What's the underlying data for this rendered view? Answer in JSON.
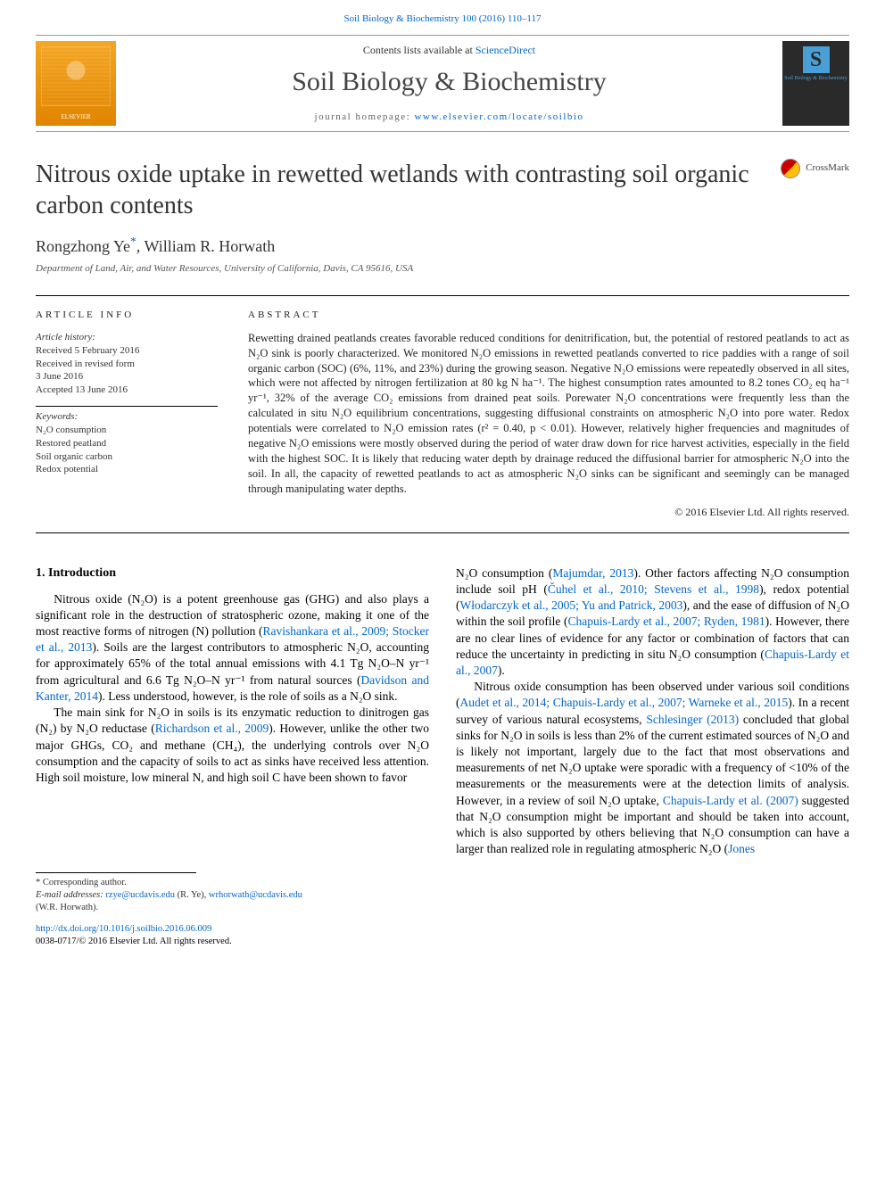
{
  "topCitation": "Soil Biology & Biochemistry 100 (2016) 110–117",
  "banner": {
    "contentsPrefix": "Contents lists available at ",
    "contentsLink": "ScienceDirect",
    "journalName": "Soil Biology & Biochemistry",
    "homepagePrefix": "journal homepage: ",
    "homepageLink": "www.elsevier.com/locate/soilbio",
    "elsevierLabel": "ELSEVIER",
    "coverTitle": "Soil Biology & Biochemistry"
  },
  "crossmarkLabel": "CrossMark",
  "title": "Nitrous oxide uptake in rewetted wetlands with contrasting soil organic carbon contents",
  "authors": {
    "a1_name": "Rongzhong Ye",
    "a1_mark": "*",
    "sep": ", ",
    "a2_name": "William R. Horwath"
  },
  "affiliation": "Department of Land, Air, and Water Resources, University of California, Davis, CA 95616, USA",
  "articleInfo": {
    "heading": "article info",
    "historyHead": "Article history:",
    "received": "Received 5 February 2016",
    "revised1": "Received in revised form",
    "revised2": "3 June 2016",
    "accepted": "Accepted 13 June 2016",
    "keywordsHead": "Keywords:",
    "kw1": "N₂O consumption",
    "kw2": "Restored peatland",
    "kw3": "Soil organic carbon",
    "kw4": "Redox potential"
  },
  "abstract": {
    "heading": "abstract",
    "body": "Rewetting drained peatlands creates favorable reduced conditions for denitrification, but, the potential of restored peatlands to act as N₂O sink is poorly characterized. We monitored N₂O emissions in rewetted peatlands converted to rice paddies with a range of soil organic carbon (SOC) (6%, 11%, and 23%) during the growing season. Negative N₂O emissions were repeatedly observed in all sites, which were not affected by nitrogen fertilization at 80 kg N ha⁻¹. The highest consumption rates amounted to 8.2 tones CO₂ eq ha⁻¹ yr⁻¹, 32% of the average CO₂ emissions from drained peat soils. Porewater N₂O concentrations were frequently less than the calculated in situ N₂O equilibrium concentrations, suggesting diffusional constraints on atmospheric N₂O into pore water. Redox potentials were correlated to N₂O emission rates (r² = 0.40, p < 0.01). However, relatively higher frequencies and magnitudes of negative N₂O emissions were mostly observed during the period of water draw down for rice harvest activities, especially in the field with the highest SOC. It is likely that reducing water depth by drainage reduced the diffusional barrier for atmospheric N₂O into the soil. In all, the capacity of rewetted peatlands to act as atmospheric N₂O sinks can be significant and seemingly can be managed through manipulating water depths.",
    "copyright": "© 2016 Elsevier Ltd. All rights reserved."
  },
  "intro": {
    "heading": "1. Introduction",
    "leftCol": {
      "p1_a": "Nitrous oxide (N₂O) is a potent greenhouse gas (GHG) and also plays a significant role in the destruction of stratospheric ozone, making it one of the most reactive forms of nitrogen (N) pollution (",
      "p1_ref1": "Ravishankara et al., 2009; Stocker et al., 2013",
      "p1_b": "). Soils are the largest contributors to atmospheric N₂O, accounting for approximately 65% of the total annual emissions with 4.1 Tg N₂O–N yr⁻¹ from agricultural and 6.6 Tg N₂O–N yr⁻¹ from natural sources (",
      "p1_ref2": "Davidson and Kanter, 2014",
      "p1_c": "). Less understood, however, is the role of soils as a N₂O sink.",
      "p2_a": "The main sink for N₂O in soils is its enzymatic reduction to dinitrogen gas (N₂) by N₂O reductase (",
      "p2_ref1": "Richardson et al., 2009",
      "p2_b": "). However, unlike the other two major GHGs, CO₂ and methane (CH₄), the underlying controls over N₂O consumption and the capacity of soils to act as sinks have received less attention. High soil moisture, low mineral N, and high soil C have been shown to favor"
    },
    "rightCol": {
      "p1_a": "N₂O consumption (",
      "p1_ref1": "Majumdar, 2013",
      "p1_b": "). Other factors affecting N₂O consumption include soil pH (",
      "p1_ref2": "Čuhel et al., 2010; Stevens et al., 1998",
      "p1_c": "), redox potential (",
      "p1_ref3": "Włodarczyk et al., 2005; Yu and Patrick, 2003",
      "p1_d": "), and the ease of diffusion of N₂O within the soil profile (",
      "p1_ref4": "Chapuis-Lardy et al., 2007; Ryden, 1981",
      "p1_e": "). However, there are no clear lines of evidence for any factor or combination of factors that can reduce the uncertainty in predicting in situ N₂O consumption (",
      "p1_ref5": "Chapuis-Lardy et al., 2007",
      "p1_f": ").",
      "p2_a": "Nitrous oxide consumption has been observed under various soil conditions (",
      "p2_ref1": "Audet et al., 2014; Chapuis-Lardy et al., 2007; Warneke et al., 2015",
      "p2_b": "). In a recent survey of various natural ecosystems, ",
      "p2_ref2": "Schlesinger (2013)",
      "p2_c": " concluded that global sinks for N₂O in soils is less than 2% of the current estimated sources of N₂O and is likely not important, largely due to the fact that most observations and measurements of net N₂O uptake were sporadic with a frequency of <10% of the measurements or the measurements were at the detection limits of analysis. However, in a review of soil N₂O uptake, ",
      "p2_ref3": "Chapuis-Lardy et al. (2007)",
      "p2_d": " suggested that N₂O consumption might be important and should be taken into account, which is also supported by others believing that N₂O consumption can have a larger than realized role in regulating atmospheric N₂O (",
      "p2_ref4": "Jones"
    }
  },
  "footnotes": {
    "corrLabel": "* Corresponding author.",
    "emailLabel": "E-mail addresses:",
    "email1": "rzye@ucdavis.edu",
    "email1_who": " (R. Ye), ",
    "email2": "wrhorwath@ucdavis.edu",
    "email2_who": "(W.R. Horwath)."
  },
  "doi": {
    "link": "http://dx.doi.org/10.1016/j.soilbio.2016.06.009",
    "issn": "0038-0717/© 2016 Elsevier Ltd. All rights reserved."
  },
  "colors": {
    "link": "#0066cc",
    "bodyText": "#000000",
    "mutedText": "#555555",
    "elsevierOrangeTop": "#f5a623",
    "elsevierOrangeBottom": "#e08500",
    "coverBg": "#2a2a2a",
    "coverAccent": "#4a9fd6",
    "crossmarkRed": "#cc0000",
    "crossmarkYellow": "#ffc107"
  },
  "typography": {
    "bodyFontFamily": "Times New Roman",
    "titleFontSize": 28,
    "journalNameFontSize": 30,
    "authorsFontSize": 18,
    "bodyFontSize": 13.5,
    "abstractFontSize": 12.5,
    "smallFontSize": 11
  }
}
